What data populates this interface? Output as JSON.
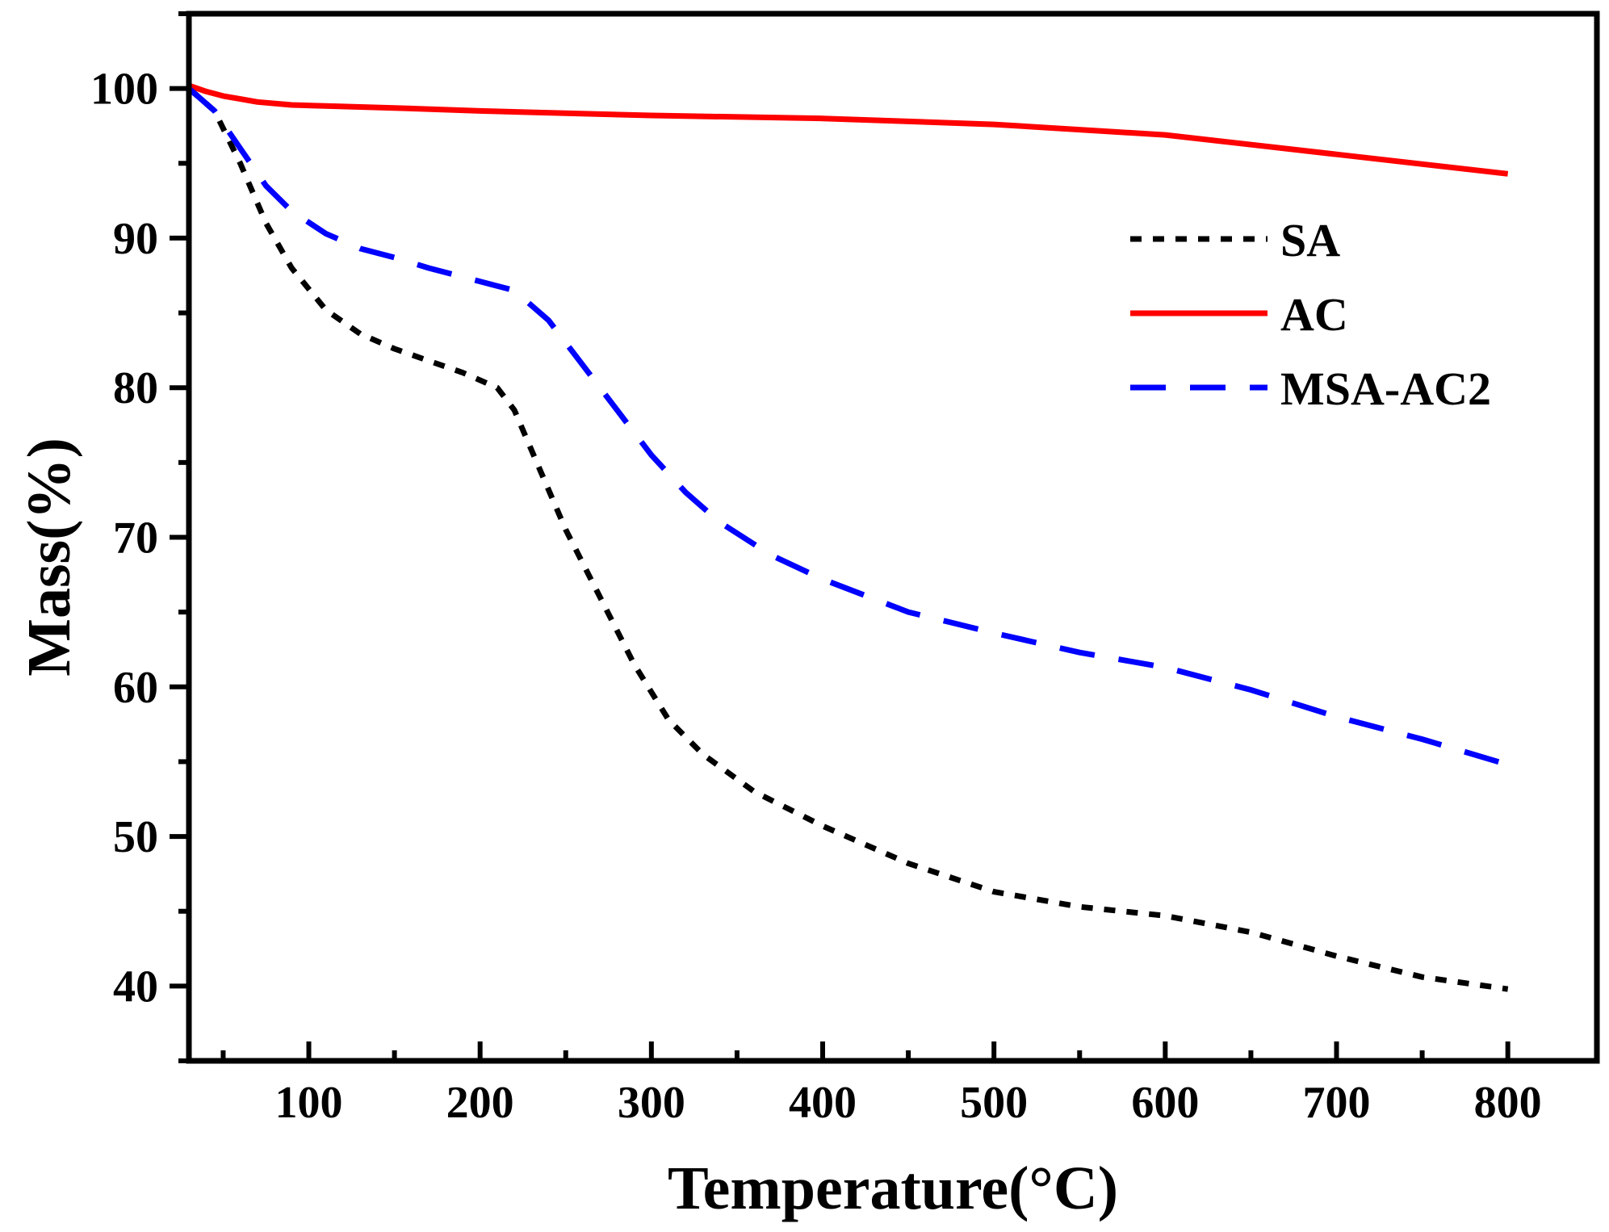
{
  "chart_data": {
    "type": "line",
    "title": "",
    "xlabel": "Temperature(°C)",
    "ylabel": "Mass(%)",
    "xlim": [
      30,
      852
    ],
    "ylim": [
      35,
      105
    ],
    "x_ticks": [
      100,
      200,
      300,
      400,
      500,
      600,
      700,
      800
    ],
    "x_tick_labels": [
      "100",
      "200",
      "300",
      "400",
      "500",
      "600",
      "700",
      "800"
    ],
    "x_minor_ticks": [
      50,
      150,
      250,
      350,
      450,
      550,
      650,
      750
    ],
    "y_ticks": [
      40,
      50,
      60,
      70,
      80,
      90,
      100
    ],
    "y_tick_labels": [
      "40",
      "50",
      "60",
      "70",
      "80",
      "90",
      "100"
    ],
    "y_minor_ticks": [
      35,
      45,
      55,
      65,
      75,
      85,
      95,
      105
    ],
    "grid": false,
    "legend_position": "top-right",
    "series": [
      {
        "name": "SA",
        "color": "#000000",
        "style": "dotted",
        "x": [
          30,
          45,
          60,
          75,
          90,
          110,
          130,
          150,
          170,
          190,
          210,
          220,
          235,
          250,
          270,
          290,
          310,
          330,
          360,
          400,
          450,
          500,
          550,
          600,
          650,
          700,
          750,
          800
        ],
        "y": [
          100,
          98.5,
          95,
          91,
          88,
          85.2,
          83.6,
          82.6,
          81.8,
          81.0,
          80.0,
          78.5,
          74.5,
          70.5,
          66.0,
          61.5,
          57.8,
          55.5,
          53.0,
          50.7,
          48.2,
          46.3,
          45.3,
          44.7,
          43.6,
          42.0,
          40.6,
          39.8
        ]
      },
      {
        "name": "AC",
        "color": "#ff0000",
        "style": "solid",
        "x": [
          30,
          40,
          50,
          60,
          70,
          90,
          120,
          150,
          200,
          300,
          400,
          500,
          600,
          700,
          800
        ],
        "y": [
          100.2,
          99.8,
          99.5,
          99.3,
          99.1,
          98.9,
          98.8,
          98.7,
          98.5,
          98.2,
          98.0,
          97.6,
          96.9,
          95.6,
          94.3
        ]
      },
      {
        "name": "MSA-AC2",
        "color": "#0000ff",
        "style": "dashed",
        "x": [
          30,
          45,
          60,
          75,
          90,
          110,
          130,
          150,
          170,
          190,
          210,
          220,
          240,
          260,
          280,
          300,
          320,
          340,
          370,
          400,
          450,
          500,
          550,
          600,
          650,
          700,
          750,
          800
        ],
        "y": [
          100,
          98.5,
          96.0,
          93.5,
          91.8,
          90.3,
          89.3,
          88.7,
          88.0,
          87.4,
          86.8,
          86.5,
          84.5,
          81.5,
          78.5,
          75.5,
          73.0,
          71.0,
          68.8,
          67.2,
          65.0,
          63.6,
          62.3,
          61.3,
          59.8,
          58.0,
          56.5,
          54.8
        ]
      }
    ]
  }
}
